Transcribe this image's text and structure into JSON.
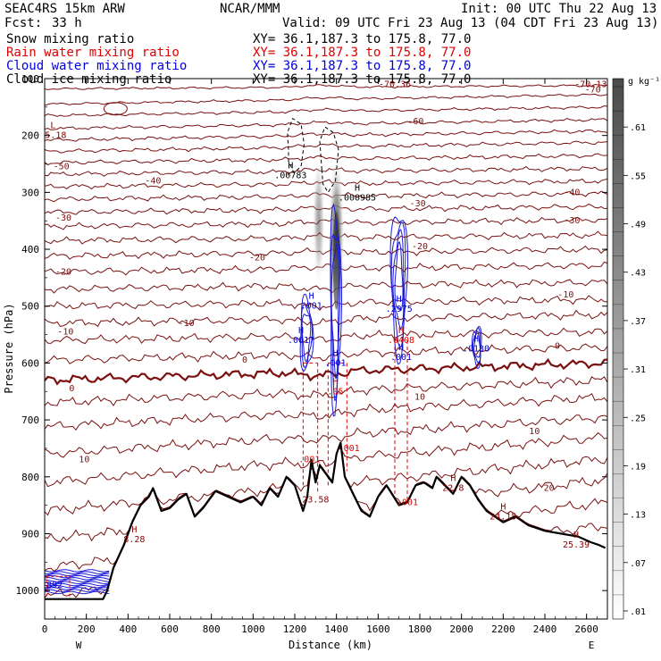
{
  "header": {
    "model": "SEAC4RS 15km ARW",
    "org": "NCAR/MMM",
    "init": "Init: 00 UTC Thu 22 Aug 13",
    "fcst_label": "Fcst:",
    "fcst_value": "33 h",
    "valid": "Valid: 09 UTC Fri 23 Aug 13 (04 CDT Fri 23 Aug 13)"
  },
  "fields": [
    {
      "name": "Snow mixing ratio",
      "xy": "XY=  36.1,187.3 to 175.8, 77.0",
      "color": "#000000"
    },
    {
      "name": "Rain water mixing ratio",
      "xy": "XY=  36.1,187.3 to 175.8, 77.0",
      "color": "#e00000"
    },
    {
      "name": "Cloud water mixing ratio",
      "xy": "XY=  36.1,187.3 to 175.8, 77.0",
      "color": "#0000e0"
    },
    {
      "name": "Cloud ice mixing ratio",
      "xy": "XY=  36.1,187.3 to 175.8, 77.0",
      "color": "#000000"
    }
  ],
  "colorbar": {
    "unit": "g kg⁻¹",
    "labels": [
      ".61",
      ".55",
      ".49",
      ".43",
      ".37",
      ".31",
      ".25",
      ".19",
      ".13",
      ".07",
      ".01"
    ],
    "levels": [
      0.61,
      0.55,
      0.49,
      0.43,
      0.37,
      0.31,
      0.25,
      0.19,
      0.13,
      0.07,
      0.01
    ]
  },
  "chart_data": {
    "type": "contour cross-section",
    "xlabel": "Distance (km)",
    "ylabel": "Pressure (hPa)",
    "xlim": [
      0,
      2700
    ],
    "ylim": [
      1050,
      100
    ],
    "x_ticks": [
      "0",
      "200",
      "400",
      "600",
      "800",
      "1000",
      "1200",
      "1400",
      "1600",
      "1800",
      "2000",
      "2200",
      "2400",
      "2600"
    ],
    "x_tick_values": [
      0,
      200,
      400,
      600,
      800,
      1000,
      1200,
      1400,
      1600,
      1800,
      2000,
      2200,
      2400,
      2600
    ],
    "y_ticks": [
      "100",
      "200",
      "300",
      "400",
      "500",
      "600",
      "700",
      "800",
      "900",
      "1000"
    ],
    "y_tick_values": [
      100,
      200,
      300,
      400,
      500,
      600,
      700,
      800,
      900,
      1000
    ],
    "west_label": "W",
    "east_label": "E",
    "terrain": {
      "x": [
        0,
        280,
        300,
        330,
        380,
        420,
        460,
        500,
        520,
        560,
        600,
        640,
        680,
        720,
        760,
        820,
        880,
        940,
        1000,
        1040,
        1080,
        1120,
        1160,
        1200,
        1240,
        1260,
        1280,
        1300,
        1320,
        1350,
        1380,
        1400,
        1420,
        1440,
        1480,
        1520,
        1560,
        1600,
        1640,
        1700,
        1740,
        1780,
        1820,
        1860,
        1880,
        1920,
        1960,
        2000,
        2040,
        2080,
        2120,
        2160,
        2200,
        2260,
        2320,
        2400,
        2480,
        2560,
        2620,
        2660,
        2690
      ],
      "p": [
        1015,
        1015,
        1000,
        960,
        920,
        880,
        850,
        835,
        820,
        860,
        855,
        840,
        830,
        870,
        855,
        825,
        835,
        845,
        835,
        850,
        820,
        835,
        800,
        815,
        860,
        835,
        770,
        810,
        780,
        795,
        810,
        760,
        740,
        800,
        830,
        860,
        870,
        835,
        815,
        850,
        845,
        815,
        810,
        820,
        800,
        815,
        830,
        800,
        815,
        840,
        860,
        870,
        880,
        870,
        885,
        895,
        900,
        905,
        915,
        920,
        925
      ]
    },
    "isotherm_labels": [
      {
        "text": "-70",
        "x": 2630,
        "p": 120
      },
      {
        "text": "-60",
        "x": 1780,
        "p": 175
      },
      {
        "text": "-50",
        "x": 80,
        "p": 255
      },
      {
        "text": "-40",
        "x": 520,
        "p": 280
      },
      {
        "text": "-40",
        "x": 2530,
        "p": 300
      },
      {
        "text": "-30",
        "x": 90,
        "p": 345
      },
      {
        "text": "-30",
        "x": 1790,
        "p": 320
      },
      {
        "text": "-30",
        "x": 2530,
        "p": 350
      },
      {
        "text": "-20",
        "x": 90,
        "p": 440
      },
      {
        "text": "-20",
        "x": 1020,
        "p": 415
      },
      {
        "text": "-20",
        "x": 1800,
        "p": 395
      },
      {
        "text": "-10",
        "x": 100,
        "p": 545
      },
      {
        "text": "-10",
        "x": 680,
        "p": 530
      },
      {
        "text": "-10",
        "x": 2500,
        "p": 480
      },
      {
        "text": "0",
        "x": 130,
        "p": 645
      },
      {
        "text": "0",
        "x": 960,
        "p": 595
      },
      {
        "text": "0",
        "x": 2460,
        "p": 570
      },
      {
        "text": "10",
        "x": 190,
        "p": 770
      },
      {
        "text": "10",
        "x": 1800,
        "p": 660
      },
      {
        "text": "10",
        "x": 2350,
        "p": 720
      },
      {
        "text": "20",
        "x": 2420,
        "p": 820
      }
    ],
    "extrema_labels": [
      {
        "letter": "L",
        "value": "55.18",
        "x": 40,
        "p": 200,
        "color": "#8b0000"
      },
      {
        "letter": "H",
        "value": ".00783",
        "x": 1180,
        "p": 270,
        "color": "#000000"
      },
      {
        "letter": "H",
        "value": ".000985",
        "x": 1500,
        "p": 310,
        "color": "#000000"
      },
      {
        "letter": "H",
        "value": ".001",
        "x": 1280,
        "p": 500,
        "color": "#0000e0"
      },
      {
        "letter": "H",
        "value": ".0617",
        "x": 1230,
        "p": 560,
        "color": "#0000e0"
      },
      {
        "letter": "H",
        "value": ".001",
        "x": 1395,
        "p": 600,
        "color": "#0000e0"
      },
      {
        "letter": "H",
        "value": ".05",
        "x": 1395,
        "p": 650,
        "color": "#e00000"
      },
      {
        "letter": "H",
        "value": ".2975",
        "x": 1700,
        "p": 505,
        "color": "#0000e0"
      },
      {
        "letter": "H",
        "value": ".0408",
        "x": 1710,
        "p": 560,
        "color": "#e00000"
      },
      {
        "letter": "H",
        "value": ".001",
        "x": 1710,
        "p": 590,
        "color": "#0000e0"
      },
      {
        "letter": "H",
        "value": ".0130",
        "x": 2070,
        "p": 575,
        "color": "#0000e0"
      },
      {
        "letter": "",
        "value": ".001",
        "x": 1270,
        "p": 770,
        "color": "#e00000"
      },
      {
        "letter": "",
        "value": ".001",
        "x": 1460,
        "p": 750,
        "color": "#e00000"
      },
      {
        "letter": "",
        "value": "23.58",
        "x": 1300,
        "p": 840,
        "color": "#8b0000"
      },
      {
        "letter": "",
        "value": ".001",
        "x": 1740,
        "p": 845,
        "color": "#e00000"
      },
      {
        "letter": "H",
        "value": "22.8",
        "x": 1960,
        "p": 820,
        "color": "#8b0000"
      },
      {
        "letter": "H",
        "value": "24.15",
        "x": 2200,
        "p": 870,
        "color": "#8b0000"
      },
      {
        "letter": "H",
        "value": "25.39",
        "x": 2550,
        "p": 920,
        "color": "#8b0000"
      },
      {
        "letter": "H",
        "value": "8.28",
        "x": 430,
        "p": 910,
        "color": "#8b0000"
      },
      {
        "letter": "",
        "value": ".892",
        "x": 35,
        "p": 990,
        "color": "#0000e0"
      }
    ],
    "top_labels": [
      {
        "text": "-70.36",
        "x": 1680,
        "p": 110,
        "color": "#8b0000"
      },
      {
        "text": "-70.13",
        "x": 2620,
        "p": 110,
        "color": "#8b0000"
      }
    ],
    "snow_max_gkg": 0.61,
    "freezing_level_hpa": 590
  }
}
